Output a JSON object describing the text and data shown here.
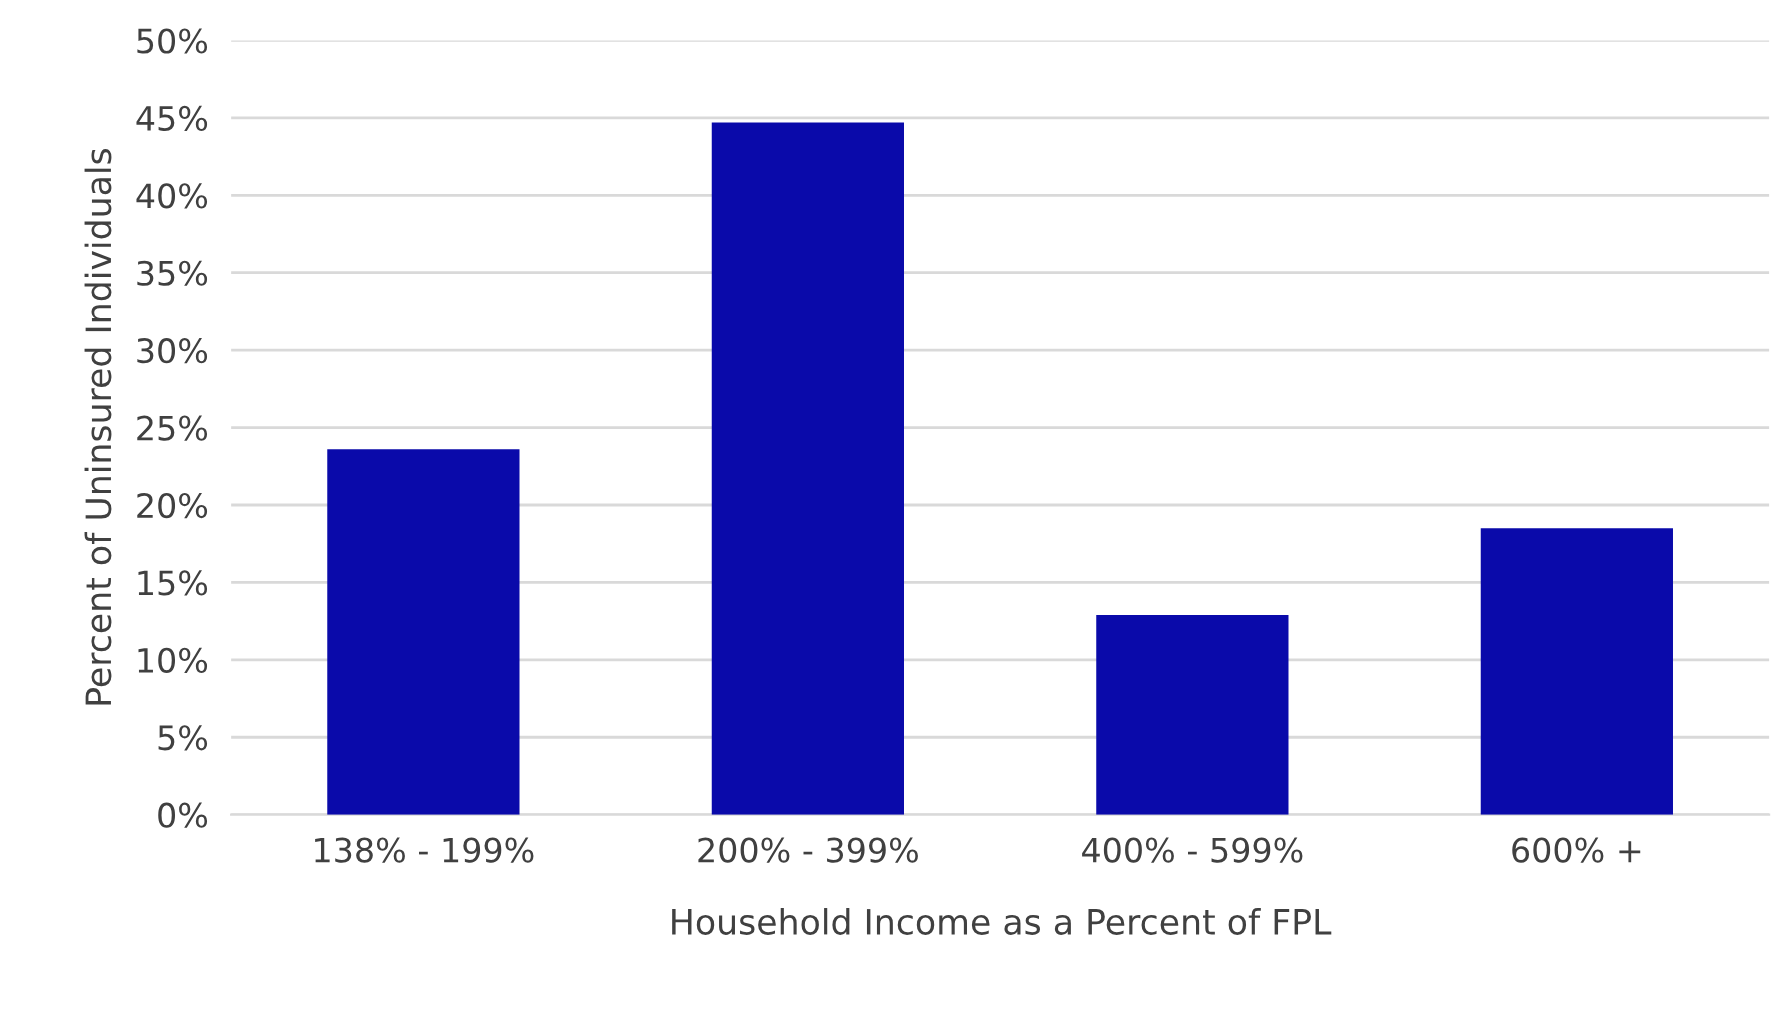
{
  "chart_data": {
    "type": "bar",
    "xlabel": "Household Income as a Percent of FPL",
    "ylabel": "Percent of Uninsured Individuals",
    "categories": [
      "138% - 199%",
      "200% - 399%",
      "400% - 599%",
      "600% +"
    ],
    "values": [
      23.6,
      44.7,
      12.9,
      18.5
    ],
    "color": "#0a0aaa",
    "ylim": [
      0,
      50
    ],
    "yticks": [
      {
        "value": 0,
        "label": "0%"
      },
      {
        "value": 5,
        "label": "5%"
      },
      {
        "value": 10,
        "label": "10%"
      },
      {
        "value": 15,
        "label": "15%"
      },
      {
        "value": 20,
        "label": "20%"
      },
      {
        "value": 25,
        "label": "25%"
      },
      {
        "value": 30,
        "label": "30%"
      },
      {
        "value": 35,
        "label": "35%"
      },
      {
        "value": 40,
        "label": "40%"
      },
      {
        "value": 45,
        "label": "45%"
      },
      {
        "value": 50,
        "label": "50%"
      }
    ],
    "grid": "y",
    "legend": false
  }
}
